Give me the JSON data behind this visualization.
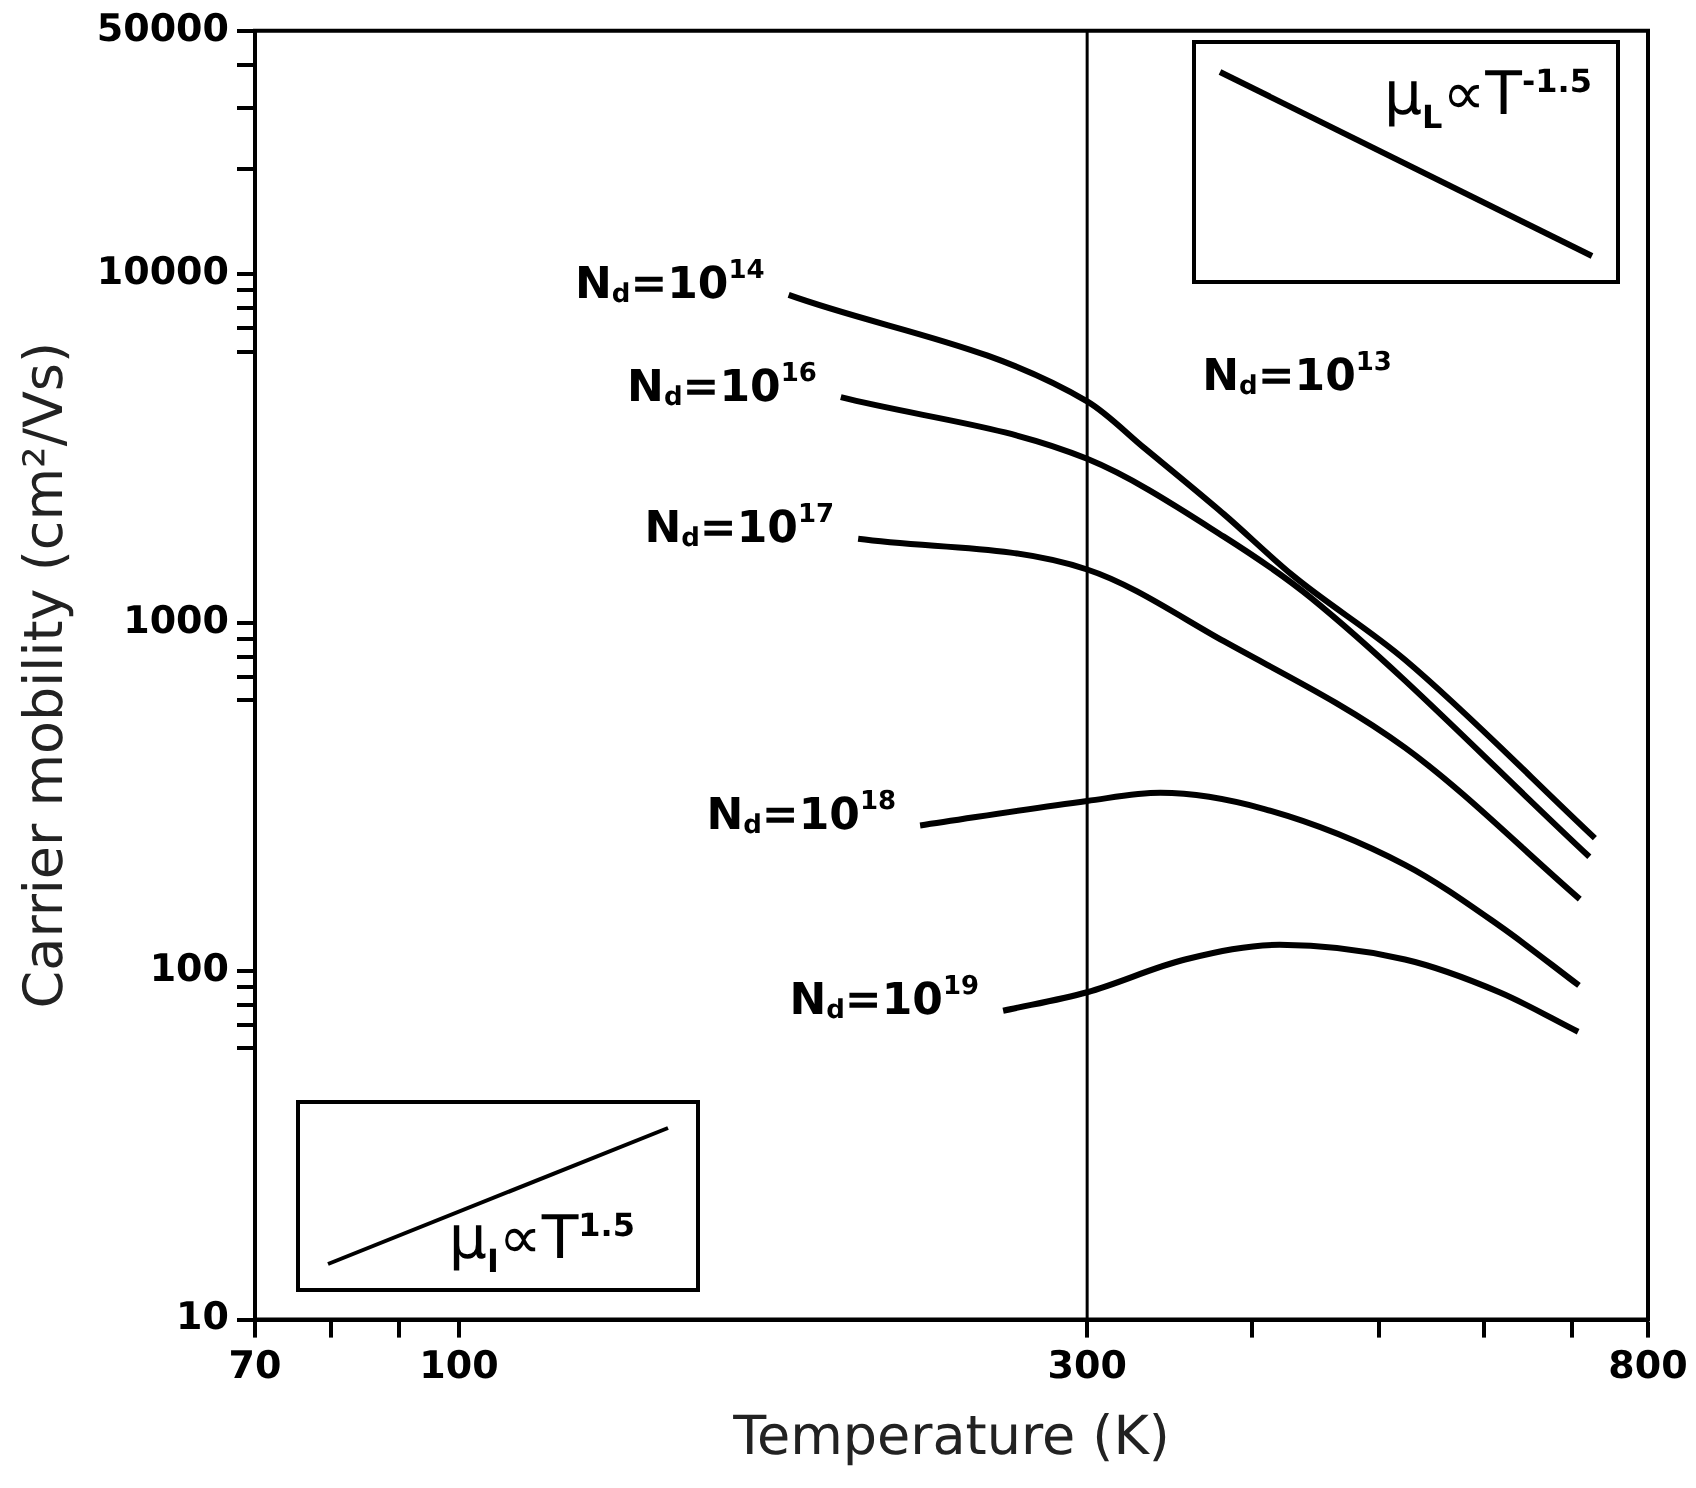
{
  "chart_data": {
    "type": "line",
    "xlabel": "Temperature (K)",
    "ylabel": "Carrier mobility (cm²/Vs)",
    "log": "xy",
    "xlim": [
      70,
      800
    ],
    "ylim": [
      10,
      50000
    ],
    "xticks": [
      70,
      {
        "value": 80,
        "label": null
      },
      {
        "value": 90,
        "label": null
      },
      100,
      300,
      {
        "value": 400,
        "label": null
      },
      {
        "value": 500,
        "label": null
      },
      {
        "value": 600,
        "label": null
      },
      {
        "value": 700,
        "label": null
      },
      800
    ],
    "yticks": [
      10,
      {
        "value": 60,
        "label": null
      },
      {
        "value": 70,
        "label": null
      },
      {
        "value": 80,
        "label": null
      },
      {
        "value": 90,
        "label": null
      },
      100,
      {
        "value": 600,
        "label": null
      },
      {
        "value": 700,
        "label": null
      },
      {
        "value": 800,
        "label": null
      },
      {
        "value": 900,
        "label": null
      },
      1000,
      {
        "value": 6000,
        "label": null
      },
      {
        "value": 7000,
        "label": null
      },
      {
        "value": 8000,
        "label": null
      },
      {
        "value": 9000,
        "label": null
      },
      10000,
      {
        "value": 20000,
        "label": null
      },
      {
        "value": 30000,
        "label": null
      },
      {
        "value": 40000,
        "label": null
      },
      50000
    ],
    "series": [
      {
        "name": "N$_{d}$=10$^{14}$",
        "color": "#000000",
        "x": [
          178,
          300,
          332,
          381,
          430,
          523,
          729
        ],
        "values": [
          8730,
          4320,
          3160,
          2050,
          1365,
          783,
          241
        ]
      },
      {
        "name": "N$_{d}$=10$^{16}$",
        "color": "#000000",
        "x": [
          195,
          300,
          381,
          444,
          722
        ],
        "values": [
          4440,
          2955,
          1767,
          1177,
          213
        ]
      },
      {
        "name": "N$_{d}$=10$^{17}$",
        "color": "#000000",
        "x": [
          201,
          300,
          381,
          523,
          710
        ],
        "values": [
          1742,
          1422,
          885,
          438,
          161
        ]
      },
      {
        "name": "N$_{d}$=10$^{18}$",
        "color": "#000000",
        "x": [
          224,
          300,
          341,
          409,
          523,
          617,
          709
        ],
        "values": [
          262,
          308,
          325,
          292,
          202,
          135,
          91
        ]
      },
      {
        "name": "N$_{d}$=10$^{19}$",
        "color": "#000000",
        "x": [
          259,
          300,
          356,
          420,
          523,
          617,
          708
        ],
        "values": [
          77,
          87,
          108,
          119,
          108,
          87,
          67
        ]
      }
    ],
    "ref_lines": [
      {
        "axis": "x",
        "value": 300,
        "color": "#000000"
      }
    ],
    "annotations": [
      "N$_{d}$=10$^{13}$",
      "μ$_{L}$∝T$^{-1.5}$",
      "μ$_{I}$∝T$^{1.5}$"
    ]
  }
}
